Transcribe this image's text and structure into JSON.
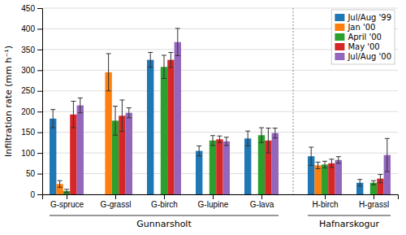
{
  "chart_data": {
    "type": "bar",
    "categories": [
      "G-spruce",
      "G-grassl",
      "G-birch",
      "G-lupine",
      "G-lava",
      "H-birch",
      "H-grassl"
    ],
    "series": [
      {
        "name": "Jul/Aug '99",
        "values": [
          183,
          null,
          325,
          105,
          135,
          92,
          28
        ],
        "errors": [
          22,
          null,
          18,
          12,
          18,
          22,
          8
        ]
      },
      {
        "name": "Jan '00",
        "values": [
          25,
          295,
          null,
          null,
          null,
          70,
          null
        ],
        "errors": [
          8,
          45,
          null,
          null,
          null,
          8,
          null
        ]
      },
      {
        "name": "April '00",
        "values": [
          8,
          178,
          308,
          130,
          143,
          72,
          28
        ],
        "errors": [
          4,
          35,
          28,
          12,
          18,
          8,
          5
        ]
      },
      {
        "name": "May '00",
        "values": [
          193,
          190,
          325,
          133,
          130,
          75,
          38
        ],
        "errors": [
          32,
          38,
          18,
          8,
          30,
          10,
          10
        ]
      },
      {
        "name": "Jul/Aug '00",
        "values": [
          215,
          197,
          368,
          128,
          148,
          83,
          95
        ],
        "errors": [
          18,
          12,
          33,
          10,
          12,
          8,
          40
        ]
      }
    ],
    "groups": [
      {
        "label": "Gunnarsholt",
        "categories": [
          "G-spruce",
          "G-grassl",
          "G-birch",
          "G-lupine",
          "G-lava"
        ]
      },
      {
        "label": "Hafnarskogur",
        "categories": [
          "H-birch",
          "H-grassl"
        ]
      }
    ],
    "ylabel": "Infiltration rate (mm h⁻¹)",
    "ylim": [
      0,
      450
    ],
    "yticks": [
      0,
      50,
      100,
      150,
      200,
      250,
      300,
      350,
      400,
      450
    ],
    "grid": true,
    "legend": "upper right"
  }
}
